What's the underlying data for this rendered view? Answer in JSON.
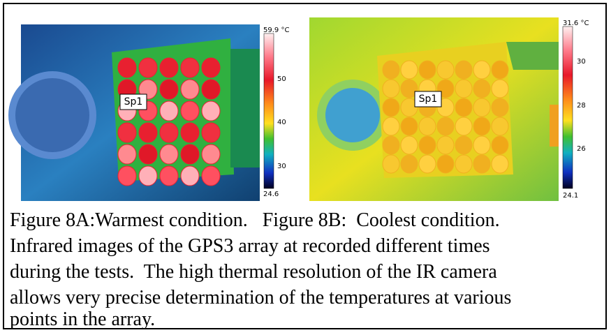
{
  "figure_a": {
    "colorbar_labels": [
      "59.9 °C",
      "50",
      "40",
      "30",
      "24.6"
    ],
    "spot": "Sp1"
  },
  "figure_b": {
    "colorbar_labels": [
      "31.6 °C",
      "30",
      "28",
      "26",
      "24.1"
    ],
    "spot": "Sp1"
  },
  "caption": {
    "lines": [
      "Figure 8A:Warmest condition.   Figure 8B:  Coolest condition.",
      "Infrared images of the GPS3 array at recorded different times",
      "during the tests.  The high thermal resolution of the IR camera",
      "allows very precise determination of the temperatures at various",
      "points in the array."
    ]
  }
}
